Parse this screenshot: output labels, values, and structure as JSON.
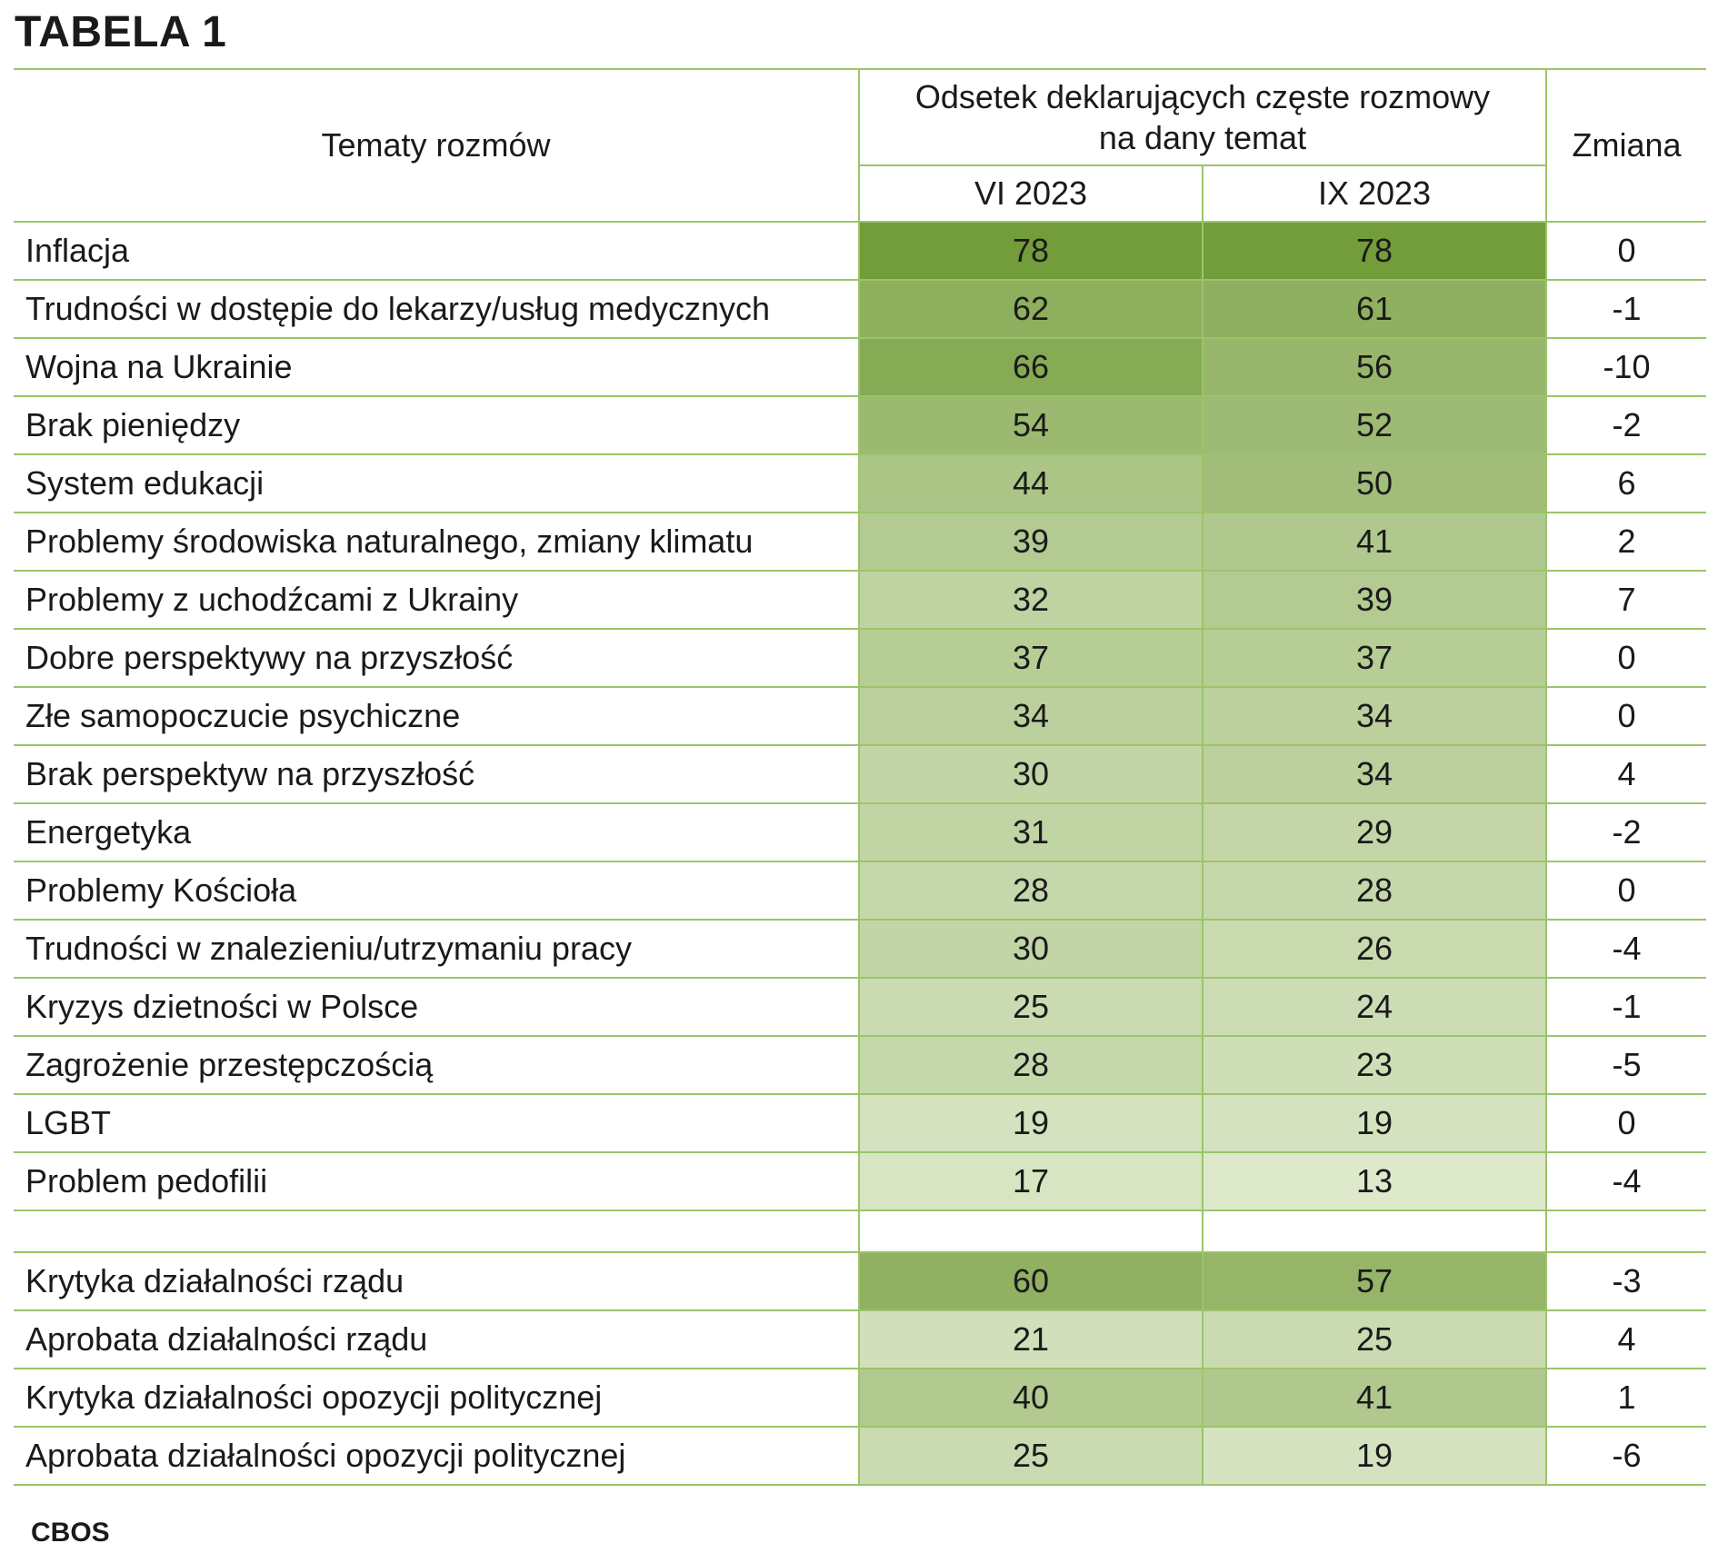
{
  "title": "TABELA 1",
  "footer": "CBOS",
  "colors": {
    "border": "#9bc46a",
    "scale_low": "#e3edd3",
    "scale_high": "#739c3a"
  },
  "chart_data": {
    "type": "table",
    "headers": {
      "topic": "Tematy rozmów",
      "group": "Odsetek deklarujących częste rozmowy na dany temat",
      "group_line1": "Odsetek deklarujących częste rozmowy",
      "group_line2": "na dany temat",
      "col_vi": "VI 2023",
      "col_ix": "IX 2023",
      "change": "Zmiana"
    },
    "rows": [
      {
        "label": "Inflacja",
        "vi": 78,
        "ix": 78,
        "change": "0"
      },
      {
        "label": "Trudności w dostępie do lekarzy/usług medycznych",
        "vi": 62,
        "ix": 61,
        "change": "-1"
      },
      {
        "label": "Wojna na Ukrainie",
        "vi": 66,
        "ix": 56,
        "change": "-10"
      },
      {
        "label": "Brak pieniędzy",
        "vi": 54,
        "ix": 52,
        "change": "-2"
      },
      {
        "label": "System edukacji",
        "vi": 44,
        "ix": 50,
        "change": "6"
      },
      {
        "label": "Problemy środowiska naturalnego, zmiany klimatu",
        "vi": 39,
        "ix": 41,
        "change": "2"
      },
      {
        "label": "Problemy z uchodźcami z Ukrainy",
        "vi": 32,
        "ix": 39,
        "change": "7"
      },
      {
        "label": "Dobre perspektywy na przyszłość",
        "vi": 37,
        "ix": 37,
        "change": "0"
      },
      {
        "label": "Złe samopoczucie psychiczne",
        "vi": 34,
        "ix": 34,
        "change": "0"
      },
      {
        "label": "Brak perspektyw na przyszłość",
        "vi": 30,
        "ix": 34,
        "change": "4"
      },
      {
        "label": "Energetyka",
        "vi": 31,
        "ix": 29,
        "change": "-2"
      },
      {
        "label": "Problemy Kościoła",
        "vi": 28,
        "ix": 28,
        "change": "0"
      },
      {
        "label": "Trudności w znalezieniu/utrzymaniu pracy",
        "vi": 30,
        "ix": 26,
        "change": "-4"
      },
      {
        "label": "Kryzys dzietności w Polsce",
        "vi": 25,
        "ix": 24,
        "change": "-1"
      },
      {
        "label": "Zagrożenie przestępczością",
        "vi": 28,
        "ix": 23,
        "change": "-5"
      },
      {
        "label": "LGBT",
        "vi": 19,
        "ix": 19,
        "change": "0"
      },
      {
        "label": "Problem pedofilii",
        "vi": 17,
        "ix": 13,
        "change": "-4"
      }
    ],
    "rows2": [
      {
        "label": "Krytyka działalności rządu",
        "vi": 60,
        "ix": 57,
        "change": "-3"
      },
      {
        "label": "Aprobata działalności rządu",
        "vi": 21,
        "ix": 25,
        "change": "4"
      },
      {
        "label": "Krytyka działalności opozycji politycznej",
        "vi": 40,
        "ix": 41,
        "change": "1"
      },
      {
        "label": "Aprobata działalności opozycji politycznej",
        "vi": 25,
        "ix": 19,
        "change": "-6"
      }
    ]
  }
}
